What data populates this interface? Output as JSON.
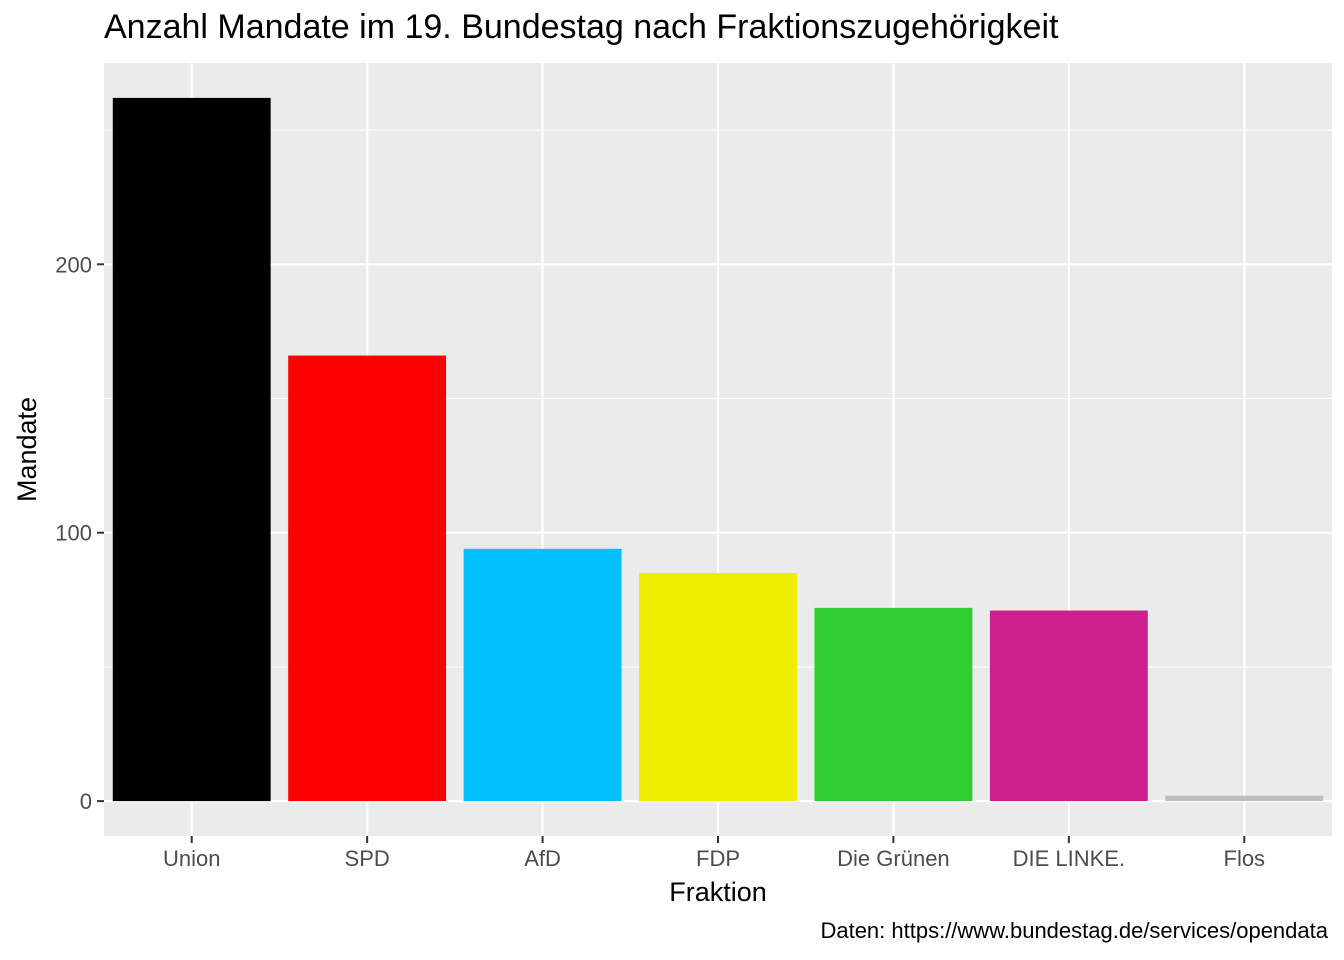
{
  "chart_data": {
    "type": "bar",
    "title": "Anzahl Mandate im 19. Bundestag nach Fraktionszugehörigkeit",
    "xlabel": "Fraktion",
    "ylabel": "Mandate",
    "caption": "Daten: https://www.bundestag.de/services/opendata",
    "categories": [
      "Union",
      "SPD",
      "AfD",
      "FDP",
      "Die Grünen",
      "DIE LINKE.",
      "Flos"
    ],
    "values": [
      262,
      166,
      94,
      85,
      72,
      71,
      2
    ],
    "colors": [
      "#000000",
      "#FF0000",
      "#00BFFF",
      "#EEEE00",
      "#32CD32",
      "#CD1F8E",
      "#BEBEBE"
    ],
    "yticks": [
      0,
      100,
      200
    ],
    "ylim": [
      -13,
      275
    ],
    "grid": true,
    "panel_background": "#EBEBEB",
    "gridline_color": "#FFFFFF",
    "legend": "none"
  }
}
